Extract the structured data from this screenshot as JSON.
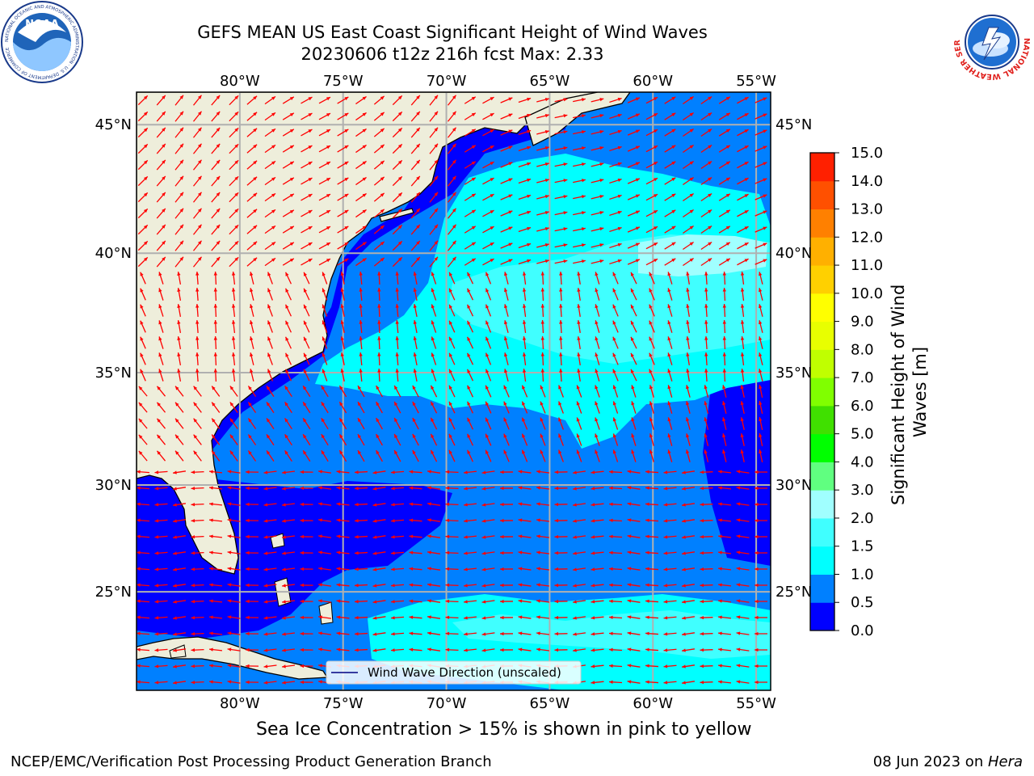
{
  "title": {
    "line1": "GEFS MEAN US East Coast Significant Height of Wind Waves",
    "line2": "20230606 t12z 216h fcst   Max: 2.33"
  },
  "logos": {
    "left": "NOAA",
    "left_ring": "NATIONAL OCEANIC AND ATMOSPHERIC ADMINISTRATION · U.S. DEPARTMENT OF COMMERCE",
    "right_ring": "NATIONAL WEATHER SERVICE"
  },
  "map": {
    "lon_labels": [
      "80°W",
      "75°W",
      "70°W",
      "65°W",
      "60°W",
      "55°W"
    ],
    "lat_labels": [
      "45°N",
      "40°N",
      "35°N",
      "30°N",
      "25°N"
    ],
    "lon_values": [
      -80,
      -75,
      -70,
      -65,
      -60,
      -55
    ],
    "lat_values": [
      45,
      40,
      35,
      30,
      25
    ],
    "extent": {
      "lon_min": -85,
      "lon_max": -54.3,
      "lat_min": 20.2,
      "lat_max": 46.2
    },
    "legend_label": "Wind Wave Direction (unscaled)",
    "arrow_color": "#ff0000",
    "land_color": "#eeeedb"
  },
  "colorbar": {
    "label": "Significant Height of Wind Waves [m]",
    "ticks": [
      "0.0",
      "0.5",
      "1.0",
      "1.5",
      "2.0",
      "3.0",
      "4.0",
      "5.0",
      "6.0",
      "7.0",
      "8.0",
      "9.0",
      "10.0",
      "11.0",
      "12.0",
      "13.0",
      "14.0",
      "15.0"
    ],
    "colors": [
      "#0000ff",
      "#0080ff",
      "#00ffff",
      "#40ffff",
      "#a0ffff",
      "#60ff80",
      "#00ff00",
      "#40e000",
      "#80ff00",
      "#c0ff00",
      "#e8ff00",
      "#ffff00",
      "#ffd000",
      "#ffb000",
      "#ff8000",
      "#ff5000",
      "#ff2000"
    ]
  },
  "caption": "Sea Ice Concentration > 15% is shown in pink to yellow",
  "footer": {
    "left": "NCEP/EMC/Verification Post Processing Product Generation Branch",
    "right_date": "08 Jun 2023 on ",
    "right_host": "Hera"
  }
}
